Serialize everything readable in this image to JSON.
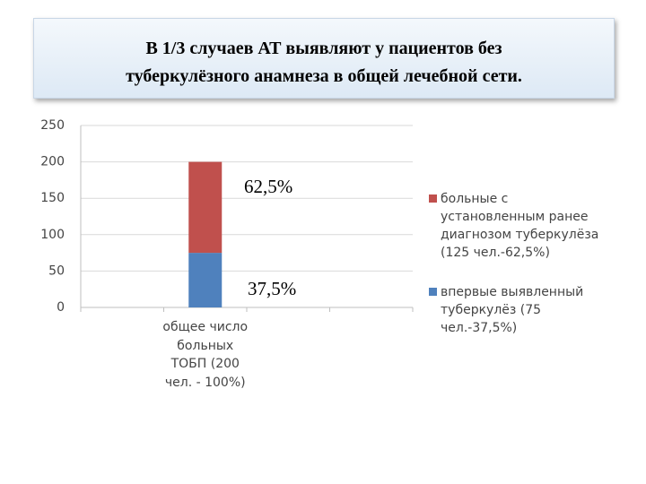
{
  "chart_data": {
    "type": "stacked-bar",
    "title": "В 1/3 случаев АТ выявляют у пациентов без туберкулёзного анамнеза в общей лечебной сети.",
    "categories": [
      null,
      "общее число больных ТОБП (200 чел. - 100%)",
      null,
      null
    ],
    "series": [
      {
        "name": "впервые выявленный туберкулёз (75 чел.-37,5%)",
        "color": "#4f81bd",
        "values": [
          null,
          75,
          null,
          null
        ]
      },
      {
        "name": "больные с установленным ранее диагнозом туберкулёза (125 чел.-62,5%)",
        "color": "#c0504d",
        "values": [
          null,
          125,
          null,
          null
        ]
      }
    ],
    "annotations": [
      "62,5%",
      "37,5%"
    ],
    "ylim": [
      0,
      250
    ],
    "yticks": [
      0,
      50,
      100,
      150,
      200,
      250
    ],
    "grid": true,
    "legend": "right"
  }
}
